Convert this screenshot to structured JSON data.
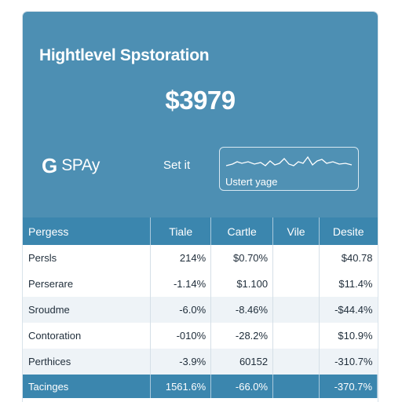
{
  "hero": {
    "title": "Hightlevel Spstoration",
    "amount": "$3979",
    "brand_logo": "G",
    "brand_name": "SPAy",
    "set_label": "Set it",
    "spark_label": "Ustert yage"
  },
  "table": {
    "headers": [
      "Pergess",
      "Tiale",
      "Cartle",
      "Vile",
      "Desite"
    ],
    "rows": [
      [
        "Persls",
        "214%",
        "$0.70%",
        "",
        "$40.78"
      ],
      [
        "Perserare",
        "-1.14%",
        "$1.100",
        "",
        "$11.4%"
      ],
      [
        "Sroudme",
        "-6.0%",
        "-8.46%",
        "",
        "-$44.4%"
      ],
      [
        "Contoration",
        "-010%",
        "-28.2%",
        "",
        "$10.9%"
      ],
      [
        "Perthices",
        "-3.9%",
        "60152",
        "",
        "-310.7%"
      ]
    ],
    "total": [
      "Tacinges",
      "1561.6%",
      "-66.0%",
      "",
      "-370.7%"
    ]
  },
  "colors": {
    "hero_bg": "#4d8fb3",
    "header_bg": "#3b86ae",
    "stripe": "#eef3f7"
  }
}
